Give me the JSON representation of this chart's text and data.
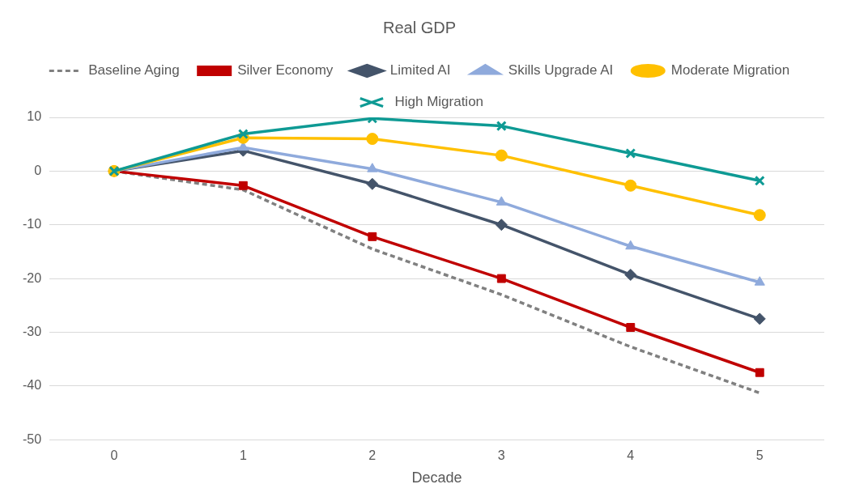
{
  "chart_data": {
    "type": "line",
    "title": "Real GDP",
    "xlabel": "Decade",
    "categories": [
      "0",
      "1",
      "2",
      "3",
      "4",
      "5"
    ],
    "ylim": [
      -50,
      10
    ],
    "yticks": [
      -50,
      -40,
      -30,
      -20,
      -10,
      0,
      10
    ],
    "grid": "y",
    "legend": "top",
    "series": [
      {
        "name": "Baseline Aging",
        "color": "#808080",
        "marker": "none",
        "line_style": "dashed",
        "values": [
          0,
          -3.5,
          -14.5,
          -23,
          -32.7,
          -41.3
        ]
      },
      {
        "name": "Silver Economy",
        "color": "#c00000",
        "marker": "square",
        "values": [
          0,
          -2.7,
          -12.2,
          -20,
          -29.1,
          -37.5
        ]
      },
      {
        "name": "Limited AI",
        "color": "#44546a",
        "marker": "diamond",
        "values": [
          0,
          3.8,
          -2.4,
          -10,
          -19.3,
          -27.5
        ]
      },
      {
        "name": "Skills Upgrade AI",
        "color": "#8faadc",
        "marker": "triangle",
        "values": [
          0,
          4.4,
          0.4,
          -5.8,
          -14,
          -20.7
        ]
      },
      {
        "name": "Moderate Migration",
        "color": "#ffc000",
        "marker": "circle",
        "values": [
          0,
          6.2,
          6,
          2.9,
          -2.7,
          -8.2
        ]
      },
      {
        "name": "High Migration",
        "color": "#0e9a94",
        "marker": "cross",
        "values": [
          0,
          6.9,
          9.8,
          8.4,
          3.3,
          -1.8
        ]
      }
    ]
  }
}
